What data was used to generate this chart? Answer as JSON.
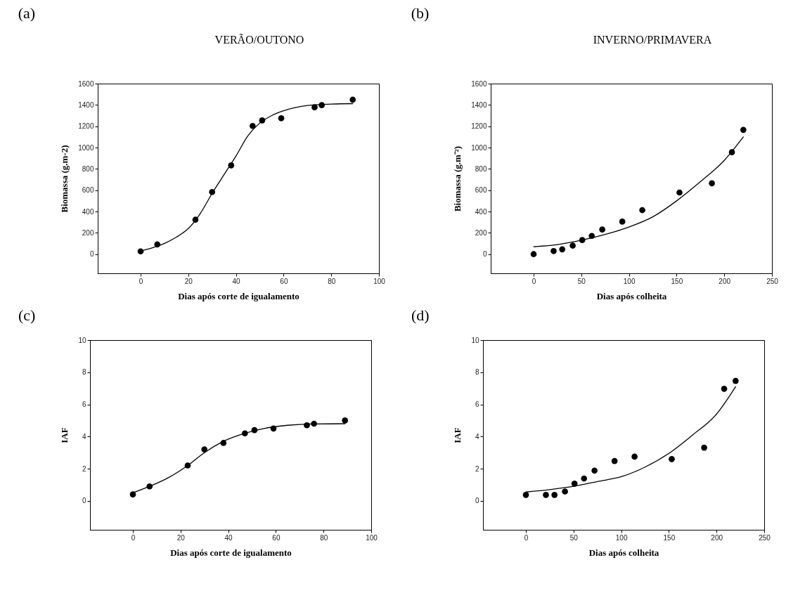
{
  "chart_data": [
    {
      "type": "scatter",
      "title": "(a)",
      "annotations": [
        "VERÃO/OUTONO"
      ],
      "xlabel": "Dias após corte de igualamento",
      "ylabel": "Biomassa (g.m-2)",
      "xlim": [
        -18,
        100
      ],
      "xticks": [
        0,
        20,
        40,
        60,
        80,
        100
      ],
      "ylim": [
        -180,
        1600
      ],
      "yticks": [
        0,
        200,
        400,
        600,
        800,
        1000,
        1200,
        1400,
        1600
      ],
      "series": [
        {
          "type": "scatter",
          "marker": "circle",
          "color": "#000000",
          "x": [
            0,
            7,
            23,
            30,
            38,
            47,
            51,
            59,
            73,
            76,
            89
          ],
          "values": [
            26,
            91,
            323,
            583,
            833,
            1203,
            1255,
            1275,
            1378,
            1398,
            1449
          ]
        },
        {
          "type": "line",
          "color": "#000000",
          "x": [
            0,
            5,
            10,
            15,
            20,
            25,
            30,
            35,
            40,
            45,
            50,
            55,
            60,
            70,
            80,
            89
          ],
          "values": [
            30,
            60,
            101,
            160,
            240,
            380,
            570,
            745,
            920,
            1110,
            1230,
            1300,
            1345,
            1395,
            1408,
            1412
          ]
        }
      ]
    },
    {
      "type": "scatter",
      "title": "(b)",
      "annotations": [
        "INVERNO/PRIMAVERA"
      ],
      "xlabel": "Dias após colheita",
      "ylabel": "Biomassa (g.m⁻²)",
      "xlim": [
        -45,
        250
      ],
      "xticks": [
        0,
        50,
        100,
        150,
        200,
        250
      ],
      "ylim": [
        -180,
        1600
      ],
      "yticks": [
        0,
        200,
        400,
        600,
        800,
        1000,
        1200,
        1400,
        1600
      ],
      "series": [
        {
          "type": "scatter",
          "marker": "circle",
          "color": "#000000",
          "x": [
            0,
            21,
            30,
            41,
            51,
            61,
            72,
            93,
            114,
            153,
            187,
            208,
            220
          ],
          "values": [
            0,
            29,
            45,
            80,
            132,
            171,
            231,
            305,
            413,
            578,
            665,
            956,
            1166
          ]
        },
        {
          "type": "line",
          "color": "#000000",
          "x": [
            0,
            25,
            50,
            75,
            100,
            125,
            150,
            175,
            200,
            220
          ],
          "values": [
            70,
            90,
            130,
            185,
            255,
            350,
            500,
            680,
            880,
            1100
          ]
        }
      ]
    },
    {
      "type": "scatter",
      "title": "(c)",
      "xlabel": "Dias após corte de igualamento",
      "ylabel": "IAF",
      "xlim": [
        -18,
        100
      ],
      "xticks": [
        0,
        20,
        40,
        60,
        80,
        100
      ],
      "ylim": [
        -1.8,
        10
      ],
      "yticks": [
        0,
        2,
        4,
        6,
        8,
        10
      ],
      "series": [
        {
          "type": "scatter",
          "marker": "circle",
          "color": "#000000",
          "x": [
            0,
            7,
            23,
            30,
            38,
            47,
            51,
            59,
            73,
            76,
            89
          ],
          "values": [
            0.4,
            0.9,
            2.2,
            3.2,
            3.6,
            4.2,
            4.4,
            4.5,
            4.7,
            4.8,
            5.0
          ]
        },
        {
          "type": "line",
          "color": "#000000",
          "x": [
            0,
            7,
            15,
            23,
            30,
            38,
            47,
            55,
            65,
            75,
            89
          ],
          "values": [
            0.5,
            0.9,
            1.45,
            2.2,
            3.0,
            3.7,
            4.2,
            4.5,
            4.7,
            4.78,
            4.8
          ]
        }
      ]
    },
    {
      "type": "scatter",
      "title": "(d)",
      "xlabel": "Dias após colheita",
      "ylabel": "IAF",
      "xlim": [
        -45,
        250
      ],
      "xticks": [
        0,
        50,
        100,
        150,
        200,
        250
      ],
      "ylim": [
        -1.8,
        10
      ],
      "yticks": [
        0,
        2,
        4,
        6,
        8,
        10
      ],
      "series": [
        {
          "type": "scatter",
          "marker": "circle",
          "color": "#000000",
          "x": [
            0,
            21,
            30,
            41,
            51,
            61,
            72,
            93,
            114,
            153,
            187,
            208,
            220
          ],
          "values": [
            0.37,
            0.37,
            0.37,
            0.58,
            1.07,
            1.39,
            1.88,
            2.48,
            2.75,
            2.6,
            3.31,
            6.97,
            7.46
          ]
        },
        {
          "type": "line",
          "color": "#000000",
          "x": [
            0,
            25,
            50,
            75,
            100,
            125,
            150,
            175,
            200,
            220
          ],
          "values": [
            0.55,
            0.7,
            0.9,
            1.2,
            1.5,
            2.1,
            2.95,
            4.1,
            5.4,
            7.1
          ]
        }
      ]
    }
  ]
}
